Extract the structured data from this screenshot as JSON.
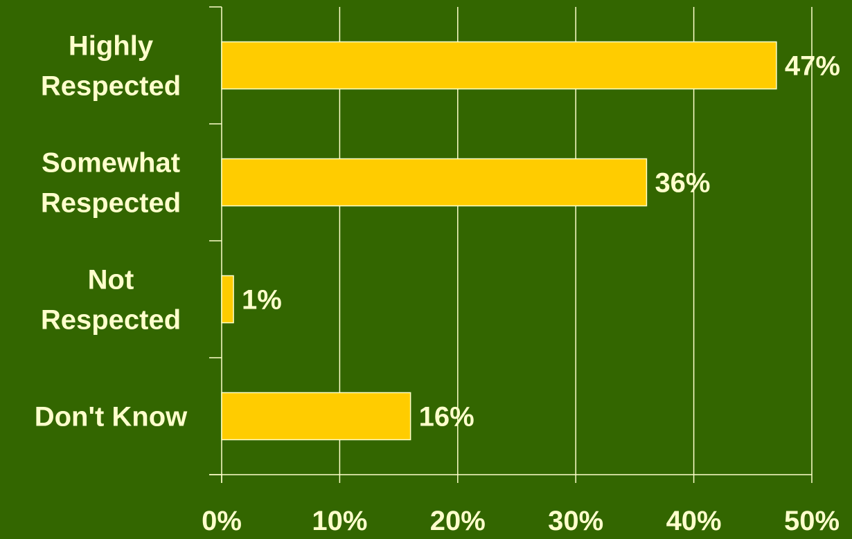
{
  "chart_data": {
    "type": "bar",
    "orientation": "horizontal",
    "categories": [
      [
        "Highly",
        "Respected"
      ],
      [
        "Somewhat",
        "Respected"
      ],
      [
        "Not",
        "Respected"
      ],
      [
        "Don't Know"
      ]
    ],
    "values": [
      47,
      36,
      1,
      16
    ],
    "value_labels": [
      "47%",
      "36%",
      "1%",
      "16%"
    ],
    "x_ticks": [
      "0%",
      "10%",
      "20%",
      "30%",
      "40%",
      "50%"
    ],
    "xlim": [
      0,
      50
    ],
    "grid": true,
    "legend": "none",
    "title": "",
    "xlabel": "",
    "ylabel": ""
  },
  "colors": {
    "background": "#336600",
    "bar_fill": "#ffcc00",
    "bar_outline": "#ffffcc",
    "text": "#ffffcc",
    "grid": "#ffffcc"
  }
}
